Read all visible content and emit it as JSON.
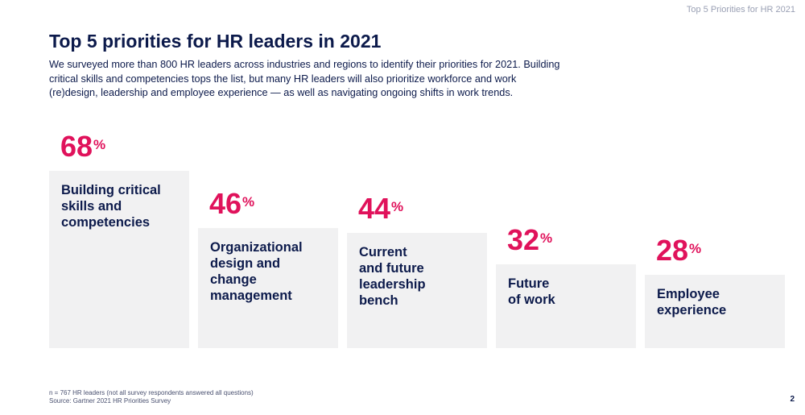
{
  "header": {
    "label": "Top 5 Priorities for HR 2021"
  },
  "title": "Top 5 priorities for HR leaders in 2021",
  "subtitle": "We surveyed more than 800 HR leaders across industries and regions to identify their priorities for 2021. Building critical skills and competencies tops the list, but many HR leaders will also prioritize workforce and work (re)design, leadership and employee experience — as well as navigating ongoing shifts in work trends.",
  "chart_data": {
    "type": "bar",
    "categories": [
      "Building critical skills and competencies",
      "Organizational design and change management",
      "Current and future leadership bench",
      "Future of work",
      "Employee experience"
    ],
    "values": [
      68,
      46,
      44,
      32,
      28
    ],
    "value_suffix": "%",
    "colors": {
      "bar": "#f1f1f2",
      "value": "#e0125b",
      "label": "#0c1a4b"
    }
  },
  "bars": [
    {
      "lines": [
        "Building critical",
        "skills and",
        "competencies"
      ],
      "value_text": "68",
      "pct": "%"
    },
    {
      "lines": [
        "Organizational",
        "design and",
        "change",
        "management"
      ],
      "value_text": "46",
      "pct": "%"
    },
    {
      "lines": [
        "Current",
        "and future",
        "leadership",
        "bench"
      ],
      "value_text": "44",
      "pct": "%"
    },
    {
      "lines": [
        "Future",
        "of work"
      ],
      "value_text": "32",
      "pct": "%"
    },
    {
      "lines": [
        "Employee",
        "experience"
      ],
      "value_text": "28",
      "pct": "%"
    }
  ],
  "footnote": {
    "line1": "n = 767 HR leaders (not all survey respondents answered all questions)",
    "line2": "Source: Gartner 2021 HR Priorities Survey"
  },
  "page_number": "2"
}
